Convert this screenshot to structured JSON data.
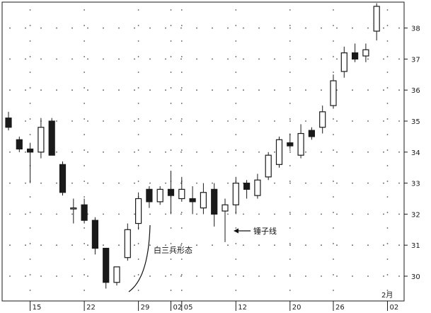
{
  "chart_data": {
    "type": "candlestick",
    "ylim": [
      29.5,
      38.9
    ],
    "y_ticks": [
      30,
      31,
      32,
      33,
      34,
      35,
      36,
      37,
      38
    ],
    "x_tick_labels": [
      {
        "index": 2,
        "label": "15"
      },
      {
        "index": 7,
        "label": "22"
      },
      {
        "index": 12,
        "label": "29"
      },
      {
        "index": 15,
        "label": "02"
      },
      {
        "index": 16,
        "label": "05"
      },
      {
        "index": 21,
        "label": "12"
      },
      {
        "index": 26,
        "label": "20"
      },
      {
        "index": 30,
        "label": "26"
      },
      {
        "index": 35,
        "label": "02"
      }
    ],
    "month_label": {
      "index": 35,
      "label": "2月"
    },
    "candles": [
      {
        "o": 35.1,
        "h": 35.3,
        "l": 34.7,
        "c": 34.8
      },
      {
        "o": 34.4,
        "h": 34.5,
        "l": 34.0,
        "c": 34.1
      },
      {
        "o": 34.1,
        "h": 34.3,
        "l": 33.0,
        "c": 34.0
      },
      {
        "o": 34.0,
        "h": 35.1,
        "l": 33.8,
        "c": 34.8
      },
      {
        "o": 35.0,
        "h": 35.1,
        "l": 33.9,
        "c": 33.9
      },
      {
        "o": 33.6,
        "h": 33.7,
        "l": 32.6,
        "c": 32.7
      },
      {
        "o": 32.2,
        "h": 32.5,
        "l": 31.7,
        "c": 32.2
      },
      {
        "o": 32.3,
        "h": 32.5,
        "l": 31.7,
        "c": 31.8
      },
      {
        "o": 31.8,
        "h": 31.9,
        "l": 30.7,
        "c": 30.9
      },
      {
        "o": 30.9,
        "h": 30.9,
        "l": 29.6,
        "c": 29.8
      },
      {
        "o": 29.8,
        "h": 30.3,
        "l": 29.7,
        "c": 30.3
      },
      {
        "o": 30.6,
        "h": 31.7,
        "l": 30.5,
        "c": 31.5
      },
      {
        "o": 31.7,
        "h": 32.7,
        "l": 31.5,
        "c": 32.5
      },
      {
        "o": 32.8,
        "h": 32.9,
        "l": 32.2,
        "c": 32.4
      },
      {
        "o": 32.4,
        "h": 32.9,
        "l": 32.3,
        "c": 32.8
      },
      {
        "o": 32.8,
        "h": 33.4,
        "l": 32.0,
        "c": 32.6
      },
      {
        "o": 32.5,
        "h": 33.2,
        "l": 32.4,
        "c": 32.8
      },
      {
        "o": 32.5,
        "h": 32.9,
        "l": 32.0,
        "c": 32.4
      },
      {
        "o": 32.2,
        "h": 33.0,
        "l": 32.0,
        "c": 32.7
      },
      {
        "o": 32.8,
        "h": 33.0,
        "l": 31.6,
        "c": 32.0
      },
      {
        "o": 32.1,
        "h": 32.5,
        "l": 31.1,
        "c": 32.3
      },
      {
        "o": 32.3,
        "h": 33.2,
        "l": 32.0,
        "c": 33.0
      },
      {
        "o": 33.0,
        "h": 33.1,
        "l": 32.5,
        "c": 32.8
      },
      {
        "o": 32.6,
        "h": 33.3,
        "l": 32.5,
        "c": 33.1
      },
      {
        "o": 33.2,
        "h": 34.0,
        "l": 33.1,
        "c": 33.9
      },
      {
        "o": 33.6,
        "h": 34.5,
        "l": 33.5,
        "c": 34.4
      },
      {
        "o": 34.3,
        "h": 34.6,
        "l": 34.1,
        "c": 34.2
      },
      {
        "o": 33.9,
        "h": 34.9,
        "l": 33.8,
        "c": 34.6
      },
      {
        "o": 34.7,
        "h": 34.8,
        "l": 34.4,
        "c": 34.5
      },
      {
        "o": 34.8,
        "h": 35.5,
        "l": 34.6,
        "c": 35.3
      },
      {
        "o": 35.5,
        "h": 36.5,
        "l": 35.4,
        "c": 36.3
      },
      {
        "o": 36.6,
        "h": 37.4,
        "l": 36.4,
        "c": 37.2
      },
      {
        "o": 37.2,
        "h": 37.5,
        "l": 36.9,
        "c": 37.0
      },
      {
        "o": 37.1,
        "h": 37.5,
        "l": 36.9,
        "c": 37.3
      },
      {
        "o": 37.9,
        "h": 38.8,
        "l": 37.6,
        "c": 38.7
      }
    ],
    "annotations": [
      {
        "text": "白三兵形态"
      },
      {
        "text": "锤子线"
      }
    ],
    "colors": {
      "up": "#ffffff",
      "down": "#1a1a1a",
      "outline": "#1a1a1a"
    }
  }
}
